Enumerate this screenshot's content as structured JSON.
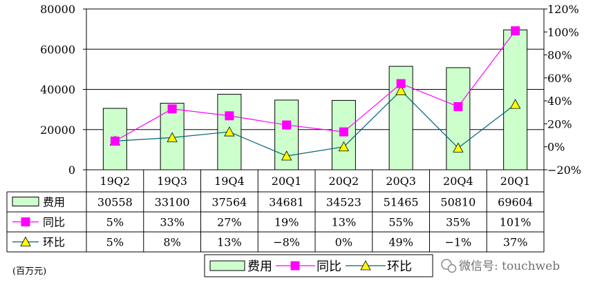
{
  "chart_data": {
    "type": "bar",
    "categories": [
      "19Q2",
      "19Q3",
      "19Q4",
      "20Q1",
      "20Q2",
      "20Q3",
      "20Q4",
      "20Q1"
    ],
    "series": [
      {
        "name": "费用",
        "kind": "bar",
        "axis": "left",
        "values": [
          30558,
          33100,
          37564,
          34681,
          34523,
          51465,
          50810,
          69604
        ],
        "labels": [
          "30558",
          "33100",
          "37564",
          "34681",
          "34523",
          "51465",
          "50810",
          "69604"
        ]
      },
      {
        "name": "同比",
        "kind": "line",
        "axis": "right",
        "values": [
          5,
          33,
          27,
          19,
          13,
          55,
          35,
          101
        ],
        "labels": [
          "5%",
          "33%",
          "27%",
          "19%",
          "13%",
          "55%",
          "35%",
          "101%"
        ]
      },
      {
        "name": "环比",
        "kind": "line",
        "axis": "right",
        "values": [
          5,
          8,
          13,
          -8,
          0,
          49,
          -1,
          37
        ],
        "labels": [
          "5%",
          "8%",
          "13%",
          "−8%",
          "0%",
          "49%",
          "−1%",
          "37%"
        ]
      }
    ],
    "y_left": {
      "lim": [
        0,
        80000
      ],
      "ticks": [
        "0",
        "20000",
        "40000",
        "60000",
        "80000"
      ]
    },
    "y_right": {
      "lim": [
        -20,
        120
      ],
      "ticks": [
        "−20%",
        "0%",
        "20%",
        "40%",
        "60%",
        "80%",
        "100%",
        "120%"
      ]
    },
    "unit_label": "(百万元)",
    "legend_placement": "bottom-right",
    "data_table": true,
    "colors": {
      "bar_fill": "#ccffcc",
      "bar_stroke": "#000000",
      "yoy": "#ff00ff",
      "qoq": "#00607a",
      "qoq_marker": "#ffff00"
    }
  },
  "watermark": {
    "text": "微信号: touchweb",
    "icon": "wechat-icon"
  }
}
